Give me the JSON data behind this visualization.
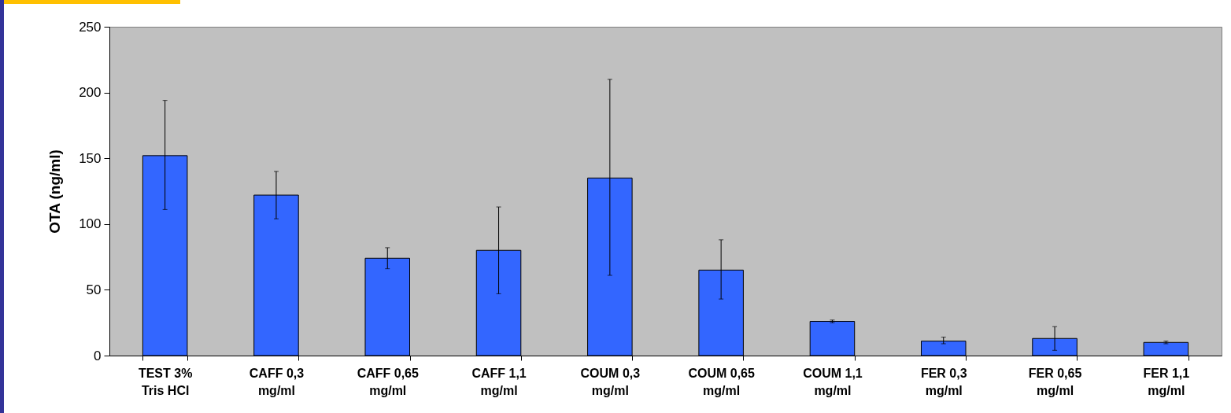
{
  "chart_data": {
    "type": "bar",
    "ylabel": "OTA (ng/ml)",
    "categories": [
      "TEST 3%\nTris HCl",
      "CAFF 0,3\nmg/ml",
      "CAFF 0,65\nmg/ml",
      "CAFF 1,1\nmg/ml",
      "COUM 0,3\nmg/ml",
      "COUM 0,65\nmg/ml",
      "COUM 1,1\nmg/ml",
      "FER 0,3\nmg/ml",
      "FER 0,65\nmg/ml",
      "FER 1,1\nmg/ml"
    ],
    "values": [
      152,
      122,
      74,
      80,
      135,
      65,
      26,
      11,
      13,
      10
    ],
    "errors": [
      [
        111,
        194
      ],
      [
        104,
        140
      ],
      [
        66,
        82
      ],
      [
        47,
        113
      ],
      [
        61,
        210
      ],
      [
        43,
        88
      ],
      [
        25,
        27
      ],
      [
        9,
        14
      ],
      [
        4,
        22
      ],
      [
        9,
        11
      ]
    ],
    "color": "#3366ff",
    "ylim": [
      0,
      250
    ],
    "yticks": [
      0,
      50,
      100,
      150,
      200,
      250
    ],
    "grid": false
  }
}
